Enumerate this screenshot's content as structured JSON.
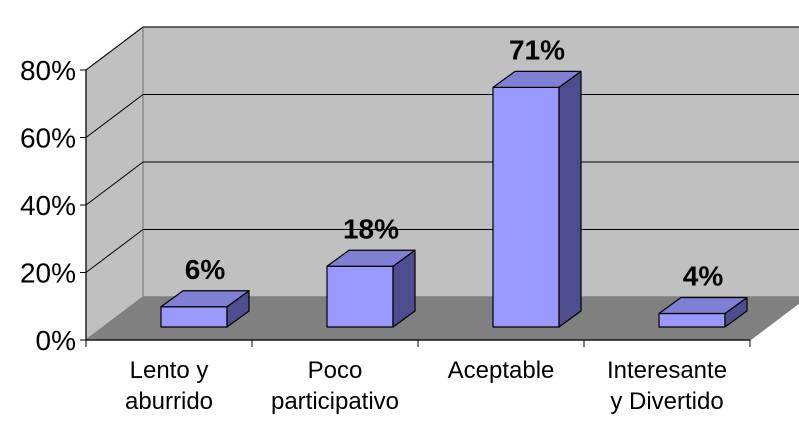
{
  "chart_data": {
    "type": "bar",
    "style": "3d-column",
    "categories": [
      [
        "Lento y",
        "aburrido"
      ],
      [
        "Poco",
        "participativo"
      ],
      [
        "Aceptable"
      ],
      [
        "Interesante",
        "y Divertido"
      ]
    ],
    "values": [
      6,
      18,
      71,
      4
    ],
    "data_labels": [
      "6%",
      "18%",
      "71%",
      "4%"
    ],
    "y_ticks": [
      "0%",
      "20%",
      "40%",
      "60%",
      "80%"
    ],
    "ylim": [
      0,
      80
    ],
    "grid": true,
    "legend": "none",
    "colors": {
      "bar_front": "#9999ff",
      "bar_top": "#7f7fd4",
      "bar_side": "#4d4d8f",
      "back_wall": "#c0c0c0",
      "side_wall": "#c0c0c0",
      "floor": "#808080",
      "grid": "#000000"
    }
  }
}
